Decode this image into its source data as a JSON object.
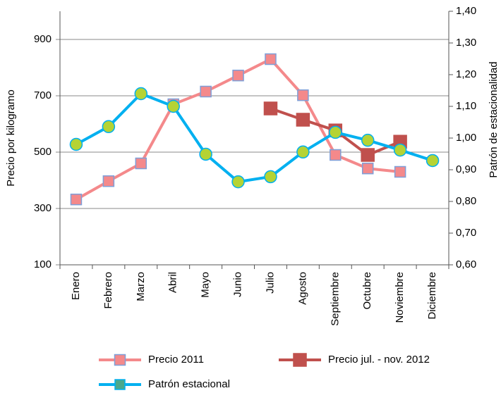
{
  "chart_data": {
    "type": "line",
    "categories": [
      "Enero",
      "Febrero",
      "Marzo",
      "Abril",
      "Mayo",
      "Junio",
      "Julio",
      "Agosto",
      "Septiembre",
      "Octubre",
      "Noviembre",
      "Diciembre"
    ],
    "ylabel": "Precio por kilogramo",
    "y2label": "Patrón de estacionalidad",
    "ylim": [
      100,
      1000
    ],
    "yticks": [
      100,
      300,
      500,
      700,
      900
    ],
    "y2lim": [
      0.6,
      1.4
    ],
    "y2ticks": [
      {
        "value": 0.6,
        "label": "0,60"
      },
      {
        "value": 0.7,
        "label": "0,70"
      },
      {
        "value": 0.8,
        "label": "0,80"
      },
      {
        "value": 0.9,
        "label": "0,90"
      },
      {
        "value": 1.0,
        "label": "1,00"
      },
      {
        "value": 1.1,
        "label": "1,10"
      },
      {
        "value": 1.2,
        "label": "1,20"
      },
      {
        "value": 1.3,
        "label": "1,30"
      },
      {
        "value": 1.4,
        "label": "1,40"
      }
    ],
    "grid": true,
    "series": [
      {
        "name": "Precio 2011",
        "color": "#f4898b",
        "marker": "square",
        "values": [
          332,
          397,
          460,
          670,
          715,
          772,
          830,
          702,
          490,
          442,
          430,
          null
        ]
      },
      {
        "name": "Precio jul. - nov. 2012",
        "color": "#c0504d",
        "marker": "square",
        "values": [
          null,
          null,
          null,
          null,
          null,
          null,
          655,
          615,
          577,
          490,
          537,
          null
        ]
      },
      {
        "name": "Patrón estacional",
        "color": "#00b0f0",
        "marker": "circle",
        "axis": "y2",
        "values": [
          0.98,
          1.036,
          1.14,
          1.1,
          0.949,
          0.862,
          0.878,
          0.956,
          1.018,
          0.993,
          0.962,
          0.929
        ]
      }
    ]
  }
}
